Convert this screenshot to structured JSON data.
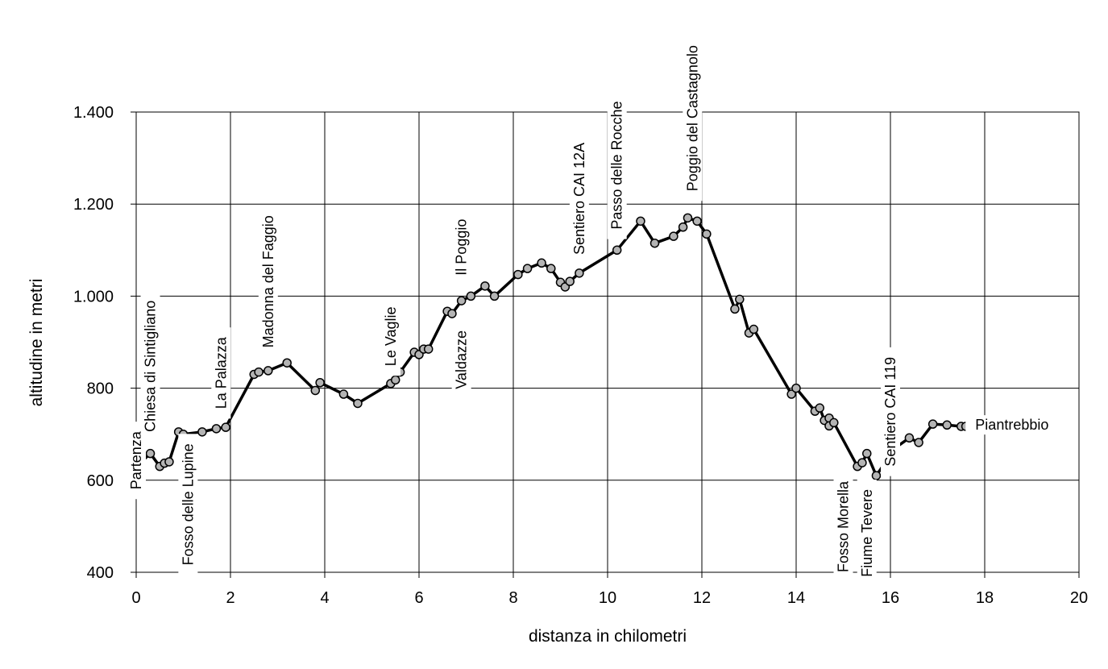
{
  "chart_data": {
    "type": "line",
    "xlabel": "distanza in chilometri",
    "ylabel": "altitudine  in metri",
    "xlim": [
      0,
      20
    ],
    "ylim": [
      400,
      1400
    ],
    "xticks": [
      0,
      2,
      4,
      6,
      8,
      10,
      12,
      14,
      16,
      18,
      20
    ],
    "yticks": [
      400,
      600,
      800,
      1000,
      1200,
      1400
    ],
    "ytick_labels": [
      "400",
      "600",
      "800",
      "1.000",
      "1.200",
      "1.400"
    ],
    "grid": true,
    "legend": "none",
    "series": [
      {
        "x": [
          0.0,
          0.3,
          0.5,
          0.6,
          0.7,
          0.9,
          1.0,
          1.4,
          1.7,
          1.9,
          2.5,
          2.6,
          2.8,
          3.2,
          3.8,
          3.9,
          4.4,
          4.7,
          5.4,
          5.5,
          5.6,
          5.9,
          6.0,
          6.1,
          6.2,
          6.6,
          6.7,
          6.9,
          7.1,
          7.4,
          7.6,
          8.1,
          8.3,
          8.6,
          8.8,
          9.0,
          9.1,
          9.2,
          9.4,
          10.2,
          10.7,
          11.0,
          11.4,
          11.6,
          11.7,
          11.9,
          12.1,
          12.7,
          12.8,
          13.0,
          13.1,
          13.9,
          14.0,
          14.4,
          14.5,
          14.6,
          14.7,
          14.7,
          14.8,
          15.3,
          15.4,
          15.5,
          15.7,
          16.1,
          16.4,
          16.6,
          16.9,
          17.2,
          17.5,
          17.6
        ],
        "y": [
          630,
          658,
          630,
          637,
          640,
          705,
          700,
          705,
          712,
          715,
          830,
          835,
          838,
          855,
          795,
          812,
          787,
          767,
          810,
          818,
          835,
          878,
          873,
          885,
          885,
          967,
          962,
          990,
          1000,
          1022,
          1000,
          1047,
          1060,
          1072,
          1060,
          1030,
          1020,
          1032,
          1050,
          1100,
          1163,
          1115,
          1130,
          1150,
          1170,
          1163,
          1135,
          972,
          993,
          920,
          928,
          787,
          800,
          750,
          757,
          730,
          735,
          718,
          725,
          630,
          638,
          658,
          610,
          670,
          692,
          682,
          722,
          720,
          717,
          717
        ]
      }
    ],
    "waypoints": [
      {
        "label": "Partenza",
        "x": 0.0,
        "orientation": "vertical",
        "anchor_y": 580
      },
      {
        "label": "Chiesa di Sintigliano",
        "x": 0.3,
        "orientation": "vertical",
        "anchor_y": 705
      },
      {
        "label": "Fosso delle Lupine",
        "x": 1.1,
        "orientation": "vertical",
        "anchor_y": 415
      },
      {
        "label": "La Palazza",
        "x": 1.8,
        "orientation": "vertical",
        "anchor_y": 755
      },
      {
        "label": "Madonna del Faggio",
        "x": 2.8,
        "orientation": "vertical",
        "anchor_y": 888
      },
      {
        "label": "Le Vaglie",
        "x": 5.4,
        "orientation": "vertical",
        "anchor_y": 848
      },
      {
        "label": "Valdazze",
        "x": 6.9,
        "orientation": "vertical",
        "anchor_y": 798
      },
      {
        "label": "Il Poggio",
        "x": 6.9,
        "orientation": "vertical",
        "anchor_y": 1045
      },
      {
        "label": "Sentiero CAI 12A",
        "x": 9.4,
        "orientation": "vertical",
        "anchor_y": 1090
      },
      {
        "label": "Passo delle Rocche",
        "x": 10.2,
        "orientation": "vertical",
        "anchor_y": 1145
      },
      {
        "label": "Poggio del Castagnolo",
        "x": 11.8,
        "orientation": "vertical",
        "anchor_y": 1228
      },
      {
        "label": "Fosso Morella",
        "x": 15.0,
        "orientation": "vertical",
        "anchor_y": 400
      },
      {
        "label": "Fiume Tevere",
        "x": 15.5,
        "orientation": "vertical",
        "anchor_y": 390
      },
      {
        "label": "Sentiero CAI 119",
        "x": 16.0,
        "orientation": "vertical",
        "anchor_y": 630
      },
      {
        "label": "Piantrebbio",
        "x": 17.8,
        "orientation": "horizontal",
        "anchor_y": 722
      }
    ]
  }
}
